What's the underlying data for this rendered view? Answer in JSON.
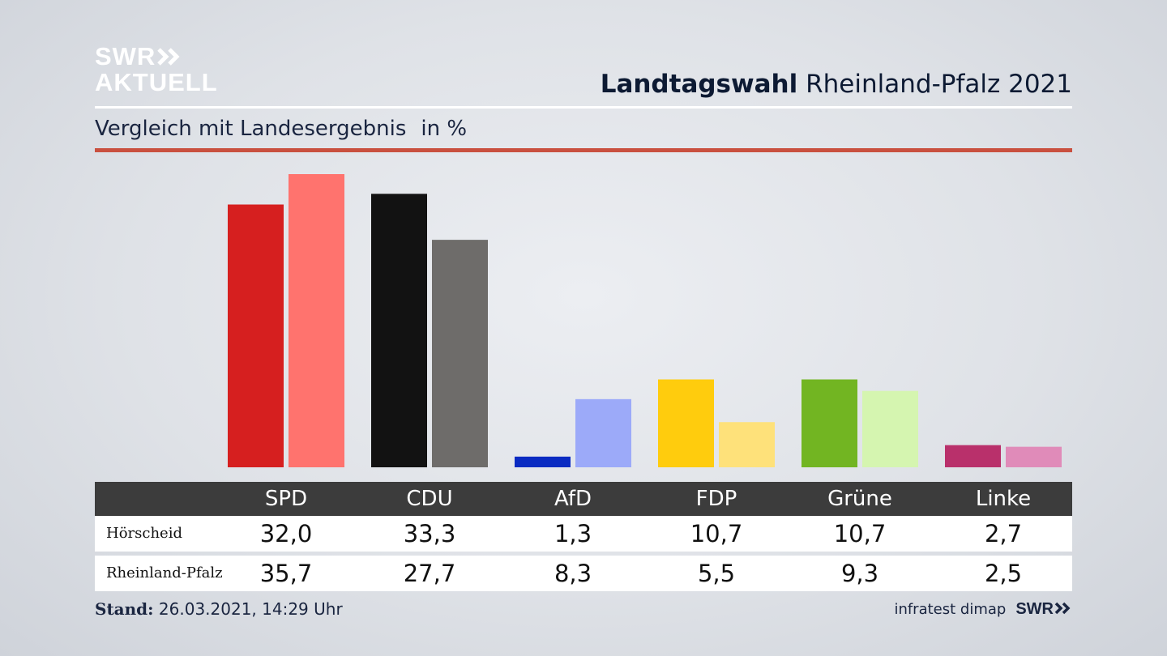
{
  "header": {
    "logo_line1": "SWR",
    "logo_line2": "AKTUELL",
    "title_bold": "Landtagswahl",
    "title_rest": " Rheinland-Pfalz 2021",
    "subtitle": "Vergleich mit Landesergebnis",
    "unit": "in %"
  },
  "table": {
    "rows": [
      {
        "label": "Hörscheid",
        "values": [
          "32,0",
          "33,3",
          "1,3",
          "10,7",
          "10,7",
          "2,7"
        ]
      },
      {
        "label": "Rheinland-Pfalz",
        "values": [
          "35,7",
          "27,7",
          "8,3",
          "5,5",
          "9,3",
          "2,5"
        ]
      }
    ]
  },
  "footer": {
    "stand_label": "Stand:",
    "stand_value": " 26.03.2021, 14:29 Uhr",
    "source": "infratest dimap",
    "logo": "SWR"
  },
  "chart_data": {
    "type": "bar",
    "title": "Landtagswahl Rheinland-Pfalz 2021",
    "subtitle": "Vergleich mit Landesergebnis in %",
    "categories": [
      "SPD",
      "CDU",
      "AfD",
      "FDP",
      "Grüne",
      "Linke"
    ],
    "series": [
      {
        "name": "Hörscheid",
        "values": [
          32.0,
          33.3,
          1.3,
          10.7,
          10.7,
          2.7
        ],
        "colors": [
          "#d61f1f",
          "#121212",
          "#0a2bc2",
          "#ffcc0d",
          "#72b522",
          "#b9306b"
        ]
      },
      {
        "name": "Rheinland-Pfalz",
        "values": [
          35.7,
          27.7,
          8.3,
          5.5,
          9.3,
          2.5
        ],
        "colors": [
          "#ff736e",
          "#6e6c6a",
          "#9caaf9",
          "#fee17a",
          "#d5f5b0",
          "#e08bb9"
        ]
      }
    ],
    "ylim": [
      0,
      36
    ],
    "grid": false,
    "legend": "table-below"
  }
}
